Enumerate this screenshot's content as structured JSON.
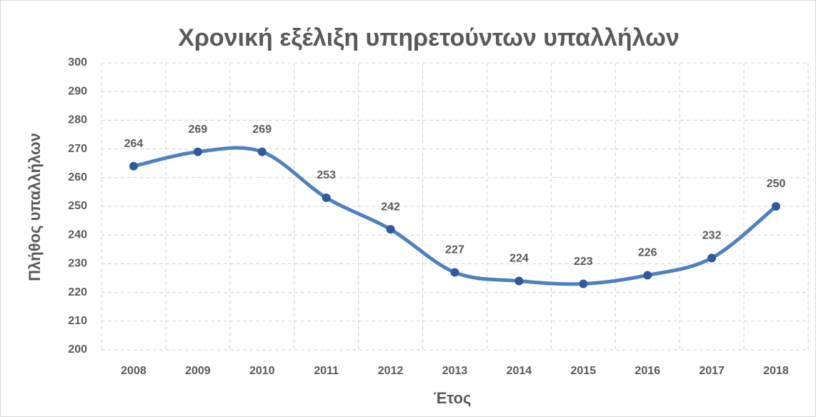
{
  "chart_data": {
    "type": "line",
    "title": "Χρονική εξέλιξη υπηρετούντων υπαλλήλων",
    "x_label": "Έτος",
    "y_label": "Πλήθος υπαλλήλων",
    "categories": [
      "2008",
      "2009",
      "2010",
      "2011",
      "2012",
      "2013",
      "2014",
      "2015",
      "2016",
      "2017",
      "2018"
    ],
    "series": [
      {
        "name": "Πλήθος υπαλλήλων",
        "color": "#4f7fbf",
        "marker_color": "#30599c",
        "values": [
          264,
          269,
          269,
          253,
          242,
          227,
          224,
          223,
          226,
          232,
          250
        ]
      }
    ],
    "ylim": [
      200,
      300
    ],
    "yticks": [
      200,
      210,
      220,
      230,
      240,
      250,
      260,
      270,
      280,
      290,
      300
    ],
    "grid": true,
    "smooth": true
  }
}
